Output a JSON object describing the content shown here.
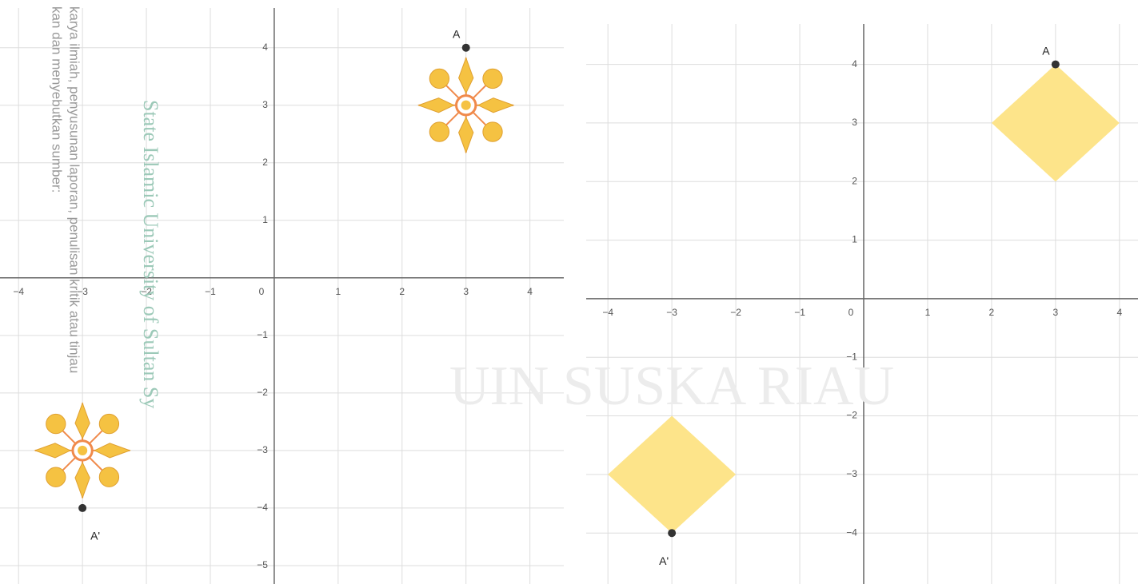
{
  "chart_data": [
    {
      "type": "scatter",
      "x": [
        3,
        -3
      ],
      "values": [
        4,
        -4
      ],
      "point_labels": [
        "A",
        "A'"
      ],
      "color": "#333333",
      "xlim": [
        -4.29,
        4.53
      ],
      "ylim": [
        -5.32,
        4.69
      ],
      "xticks": [
        {
          "value": -4,
          "label": "−4"
        },
        {
          "value": -3,
          "label": "−3"
        },
        {
          "value": -2,
          "label": "−2"
        },
        {
          "value": -1,
          "label": "−1"
        },
        0,
        1,
        2,
        3,
        4
      ],
      "yticks": [
        {
          "value": -5,
          "label": "−5"
        },
        {
          "value": -4,
          "label": "−4"
        },
        {
          "value": -3,
          "label": "−3"
        },
        {
          "value": -2,
          "label": "−2"
        },
        {
          "value": -1,
          "label": "−1"
        },
        1,
        2,
        3,
        4
      ],
      "grid": true
    },
    {
      "type": "scatter",
      "x": [
        3,
        -3
      ],
      "values": [
        4,
        -4
      ],
      "point_labels": [
        "A",
        "A'"
      ],
      "color": "#333333",
      "xlim": [
        -4.34,
        4.29
      ],
      "ylim": [
        -4.87,
        4.69
      ],
      "xticks": [
        {
          "value": -4,
          "label": "−4"
        },
        {
          "value": -3,
          "label": "−3"
        },
        {
          "value": -2,
          "label": "−2"
        },
        {
          "value": -1,
          "label": "−1"
        },
        0,
        1,
        2,
        3,
        4
      ],
      "yticks": [
        {
          "value": -4,
          "label": "−4"
        },
        {
          "value": -3,
          "label": "−3"
        },
        {
          "value": -2,
          "label": "−2"
        },
        {
          "value": -1,
          "label": "−1"
        },
        1,
        2,
        3,
        4
      ],
      "grid": true
    }
  ],
  "watermarks": [
    "kan dan menyebutkan sumber:",
    "karya ilmiah, penyusunan laporan, penulisan kritik atau tinjau",
    "State Islamic University of Sultan Sy",
    "UIN SUSKA RIAU"
  ]
}
